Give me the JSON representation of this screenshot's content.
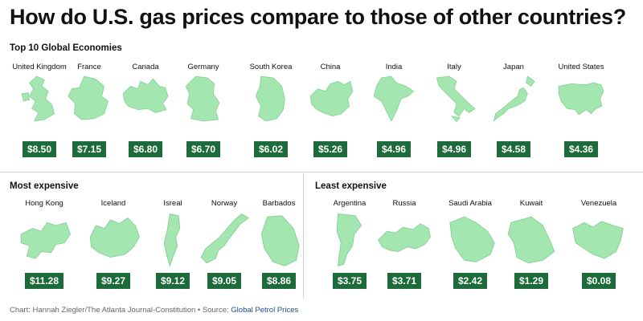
{
  "title": "How do U.S. gas prices compare to those of other countries?",
  "colors": {
    "land": "#a3e6b0",
    "land_stroke": "#7fd092",
    "badge": "#1d6a3a",
    "badge_text": "#ffffff",
    "link": "#1f4e8c"
  },
  "sections": {
    "top10": "Top 10 Global Economies",
    "most": "Most expensive",
    "least": "Least expensive"
  },
  "footer": {
    "credit": "Chart: Hannah Ziegler/The Atlanta Journal-Constitution • Source:",
    "source": "Global Petrol Prices"
  },
  "chart_data": [
    {
      "type": "table",
      "title": "Top 10 Global Economies",
      "categories": [
        "United Kingdom",
        "France",
        "Canada",
        "Germany",
        "South Korea",
        "China",
        "India",
        "Italy",
        "Japan",
        "United States"
      ],
      "values": [
        8.5,
        7.15,
        6.8,
        6.7,
        6.02,
        5.26,
        4.96,
        4.96,
        4.58,
        4.36
      ],
      "labels": [
        "$8.50",
        "$7.15",
        "$6.80",
        "$6.70",
        "$6.02",
        "$5.26",
        "$4.96",
        "$4.96",
        "$4.58",
        "$4.36"
      ],
      "icons": [
        "uk-map-icon",
        "france-map-icon",
        "canada-map-icon",
        "germany-map-icon",
        "south-korea-map-icon",
        "china-map-icon",
        "india-map-icon",
        "italy-map-icon",
        "japan-map-icon",
        "united-states-map-icon"
      ]
    },
    {
      "type": "table",
      "title": "Most expensive",
      "categories": [
        "Hong Kong",
        "Iceland",
        "Isreal",
        "Norway",
        "Barbados"
      ],
      "values": [
        11.28,
        9.27,
        9.12,
        9.05,
        8.86
      ],
      "labels": [
        "$11.28",
        "$9.27",
        "$9.12",
        "$9.05",
        "$8.86"
      ],
      "icons": [
        "hong-kong-map-icon",
        "iceland-map-icon",
        "israel-map-icon",
        "norway-map-icon",
        "barbados-map-icon"
      ]
    },
    {
      "type": "table",
      "title": "Least expensive",
      "categories": [
        "Argentina",
        "Russia",
        "Saudi Arabia",
        "Kuwait",
        "Venezuela"
      ],
      "values": [
        3.75,
        3.71,
        2.42,
        1.29,
        0.08
      ],
      "labels": [
        "$3.75",
        "$3.71",
        "$2.42",
        "$1.29",
        "$0.08"
      ],
      "icons": [
        "argentina-map-icon",
        "russia-map-icon",
        "saudi-arabia-map-icon",
        "kuwait-map-icon",
        "venezuela-map-icon"
      ]
    }
  ]
}
